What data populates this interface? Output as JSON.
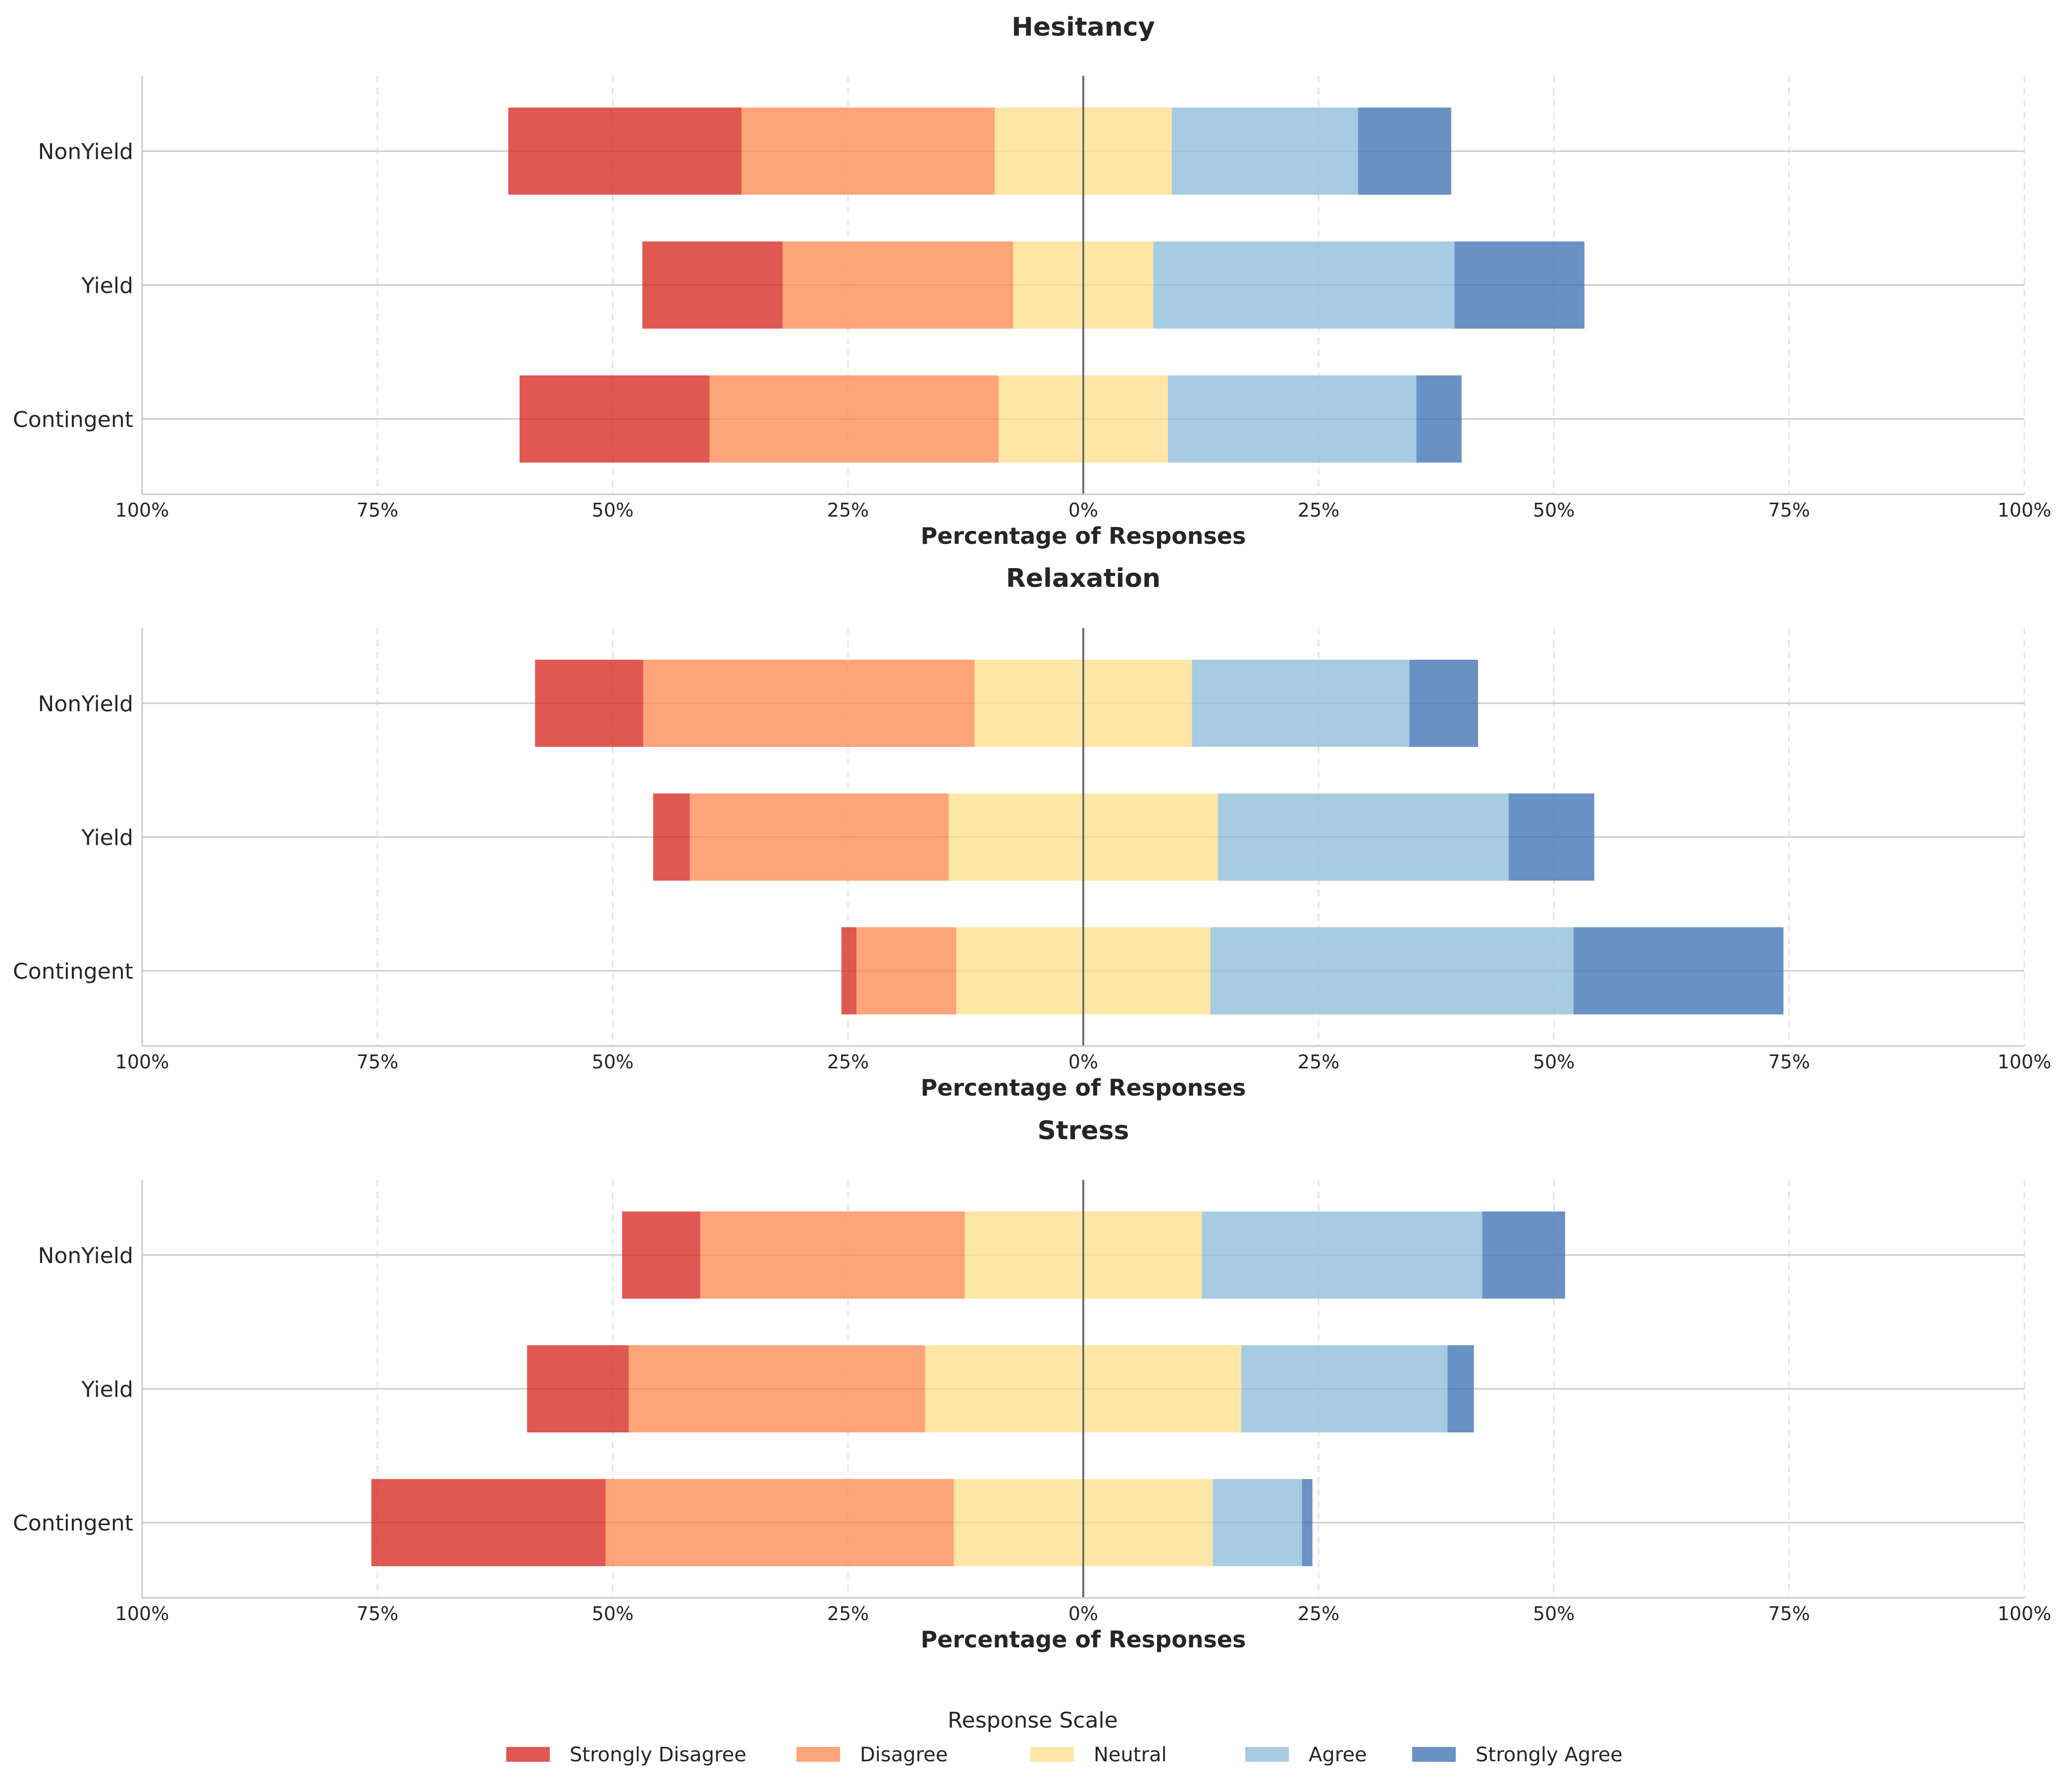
{
  "chart_data": {
    "type": "bar",
    "subtype": "diverging stacked horizontal bar (Likert)",
    "xlabel": "Percentage of Responses",
    "xticks": [
      "100%",
      "75%",
      "50%",
      "25%",
      "0%",
      "25%",
      "50%",
      "75%",
      "100%"
    ],
    "xlim": [
      -100,
      100
    ],
    "categories": [
      "NonYield",
      "Yield",
      "Contingent"
    ],
    "legend": {
      "title": "Response Scale",
      "position": "bottom-center",
      "items": [
        "Strongly Disagree",
        "Disagree",
        "Neutral",
        "Agree",
        "Strongly Agree"
      ]
    },
    "colors": {
      "Strongly Disagree": "#d73027",
      "Disagree": "#fc8d59",
      "Neutral": "#fee090",
      "Agree": "#91bfdb",
      "Strongly Agree": "#4575b4"
    },
    "panels": [
      {
        "title": "Hesitancy",
        "series": [
          {
            "name": "Strongly Disagree",
            "values": [
              24.8,
              14.9,
              20.2
            ]
          },
          {
            "name": "Disagree",
            "values": [
              26.9,
              24.5,
              30.7
            ]
          },
          {
            "name": "Neutral",
            "values": [
              18.8,
              14.9,
              18.0
            ]
          },
          {
            "name": "Agree",
            "values": [
              19.8,
              32.0,
              26.4
            ]
          },
          {
            "name": "Strongly Agree",
            "values": [
              9.9,
              13.8,
              4.8
            ]
          }
        ]
      },
      {
        "title": "Relaxation",
        "series": [
          {
            "name": "Strongly Disagree",
            "values": [
              11.5,
              3.9,
              1.6
            ]
          },
          {
            "name": "Disagree",
            "values": [
              35.2,
              27.5,
              10.6
            ]
          },
          {
            "name": "Neutral",
            "values": [
              23.1,
              28.6,
              27.0
            ]
          },
          {
            "name": "Agree",
            "values": [
              23.1,
              30.9,
              38.6
            ]
          },
          {
            "name": "Strongly Agree",
            "values": [
              7.3,
              9.1,
              22.3
            ]
          }
        ]
      },
      {
        "title": "Stress",
        "series": [
          {
            "name": "Strongly Disagree",
            "values": [
              8.3,
              10.8,
              24.9
            ]
          },
          {
            "name": "Disagree",
            "values": [
              28.1,
              31.5,
              37.0
            ]
          },
          {
            "name": "Neutral",
            "values": [
              25.2,
              33.6,
              27.5
            ]
          },
          {
            "name": "Agree",
            "values": [
              29.8,
              21.9,
              9.5
            ]
          },
          {
            "name": "Strongly Agree",
            "values": [
              8.8,
              2.8,
              1.1
            ]
          }
        ]
      }
    ]
  }
}
